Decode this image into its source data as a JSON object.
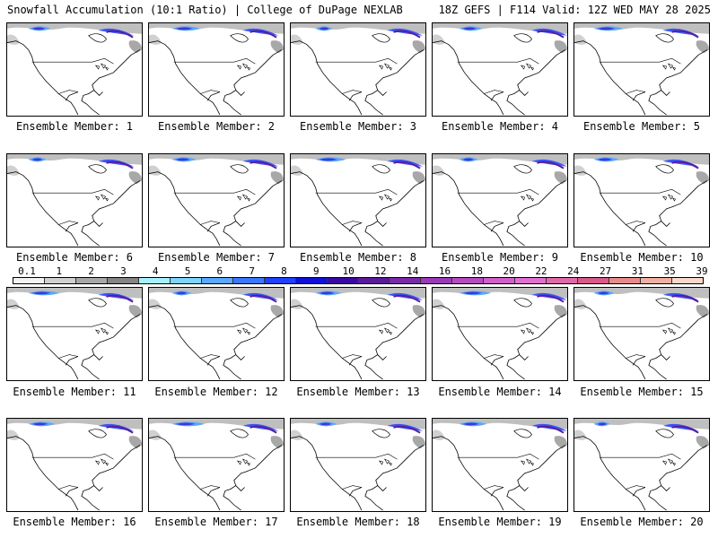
{
  "header": {
    "title": "Snowfall Accumulation (10:1 Ratio) | College of DuPage NEXLAB",
    "run_info": "18Z GEFS | F114 Valid: 12Z WED MAY 28 2025"
  },
  "colorbar": {
    "labels": [
      "0.1",
      "1",
      "2",
      "3",
      "4",
      "5",
      "6",
      "7",
      "8",
      "9",
      "10",
      "12",
      "14",
      "16",
      "18",
      "20",
      "22",
      "24",
      "27",
      "31",
      "35",
      "39"
    ],
    "colors": [
      "#f2f2f2",
      "#d0d0d0",
      "#a8a8a8",
      "#858585",
      "#a8f0ff",
      "#7fd4ff",
      "#5aa8ff",
      "#3b78ff",
      "#1e40ff",
      "#1010d8",
      "#3a0aa0",
      "#5a1a9c",
      "#7a2aa8",
      "#9a3ab8",
      "#b84ac0",
      "#d060c8",
      "#e070d0",
      "#e06aa8",
      "#d85a88",
      "#e88a88",
      "#f0b0a0",
      "#f8d8c8"
    ]
  },
  "panels": [
    {
      "label": "Ensemble Member: 1"
    },
    {
      "label": "Ensemble Member: 2"
    },
    {
      "label": "Ensemble Member: 3"
    },
    {
      "label": "Ensemble Member: 4"
    },
    {
      "label": "Ensemble Member: 5"
    },
    {
      "label": "Ensemble Member: 6"
    },
    {
      "label": "Ensemble Member: 7"
    },
    {
      "label": "Ensemble Member: 8"
    },
    {
      "label": "Ensemble Member: 9"
    },
    {
      "label": "Ensemble Member: 10"
    },
    {
      "label": "Ensemble Member: 11"
    },
    {
      "label": "Ensemble Member: 12"
    },
    {
      "label": "Ensemble Member: 13"
    },
    {
      "label": "Ensemble Member: 14"
    },
    {
      "label": "Ensemble Member: 15"
    },
    {
      "label": "Ensemble Member: 16"
    },
    {
      "label": "Ensemble Member: 17"
    },
    {
      "label": "Ensemble Member: 18"
    },
    {
      "label": "Ensemble Member: 19"
    },
    {
      "label": "Ensemble Member: 20"
    }
  ]
}
